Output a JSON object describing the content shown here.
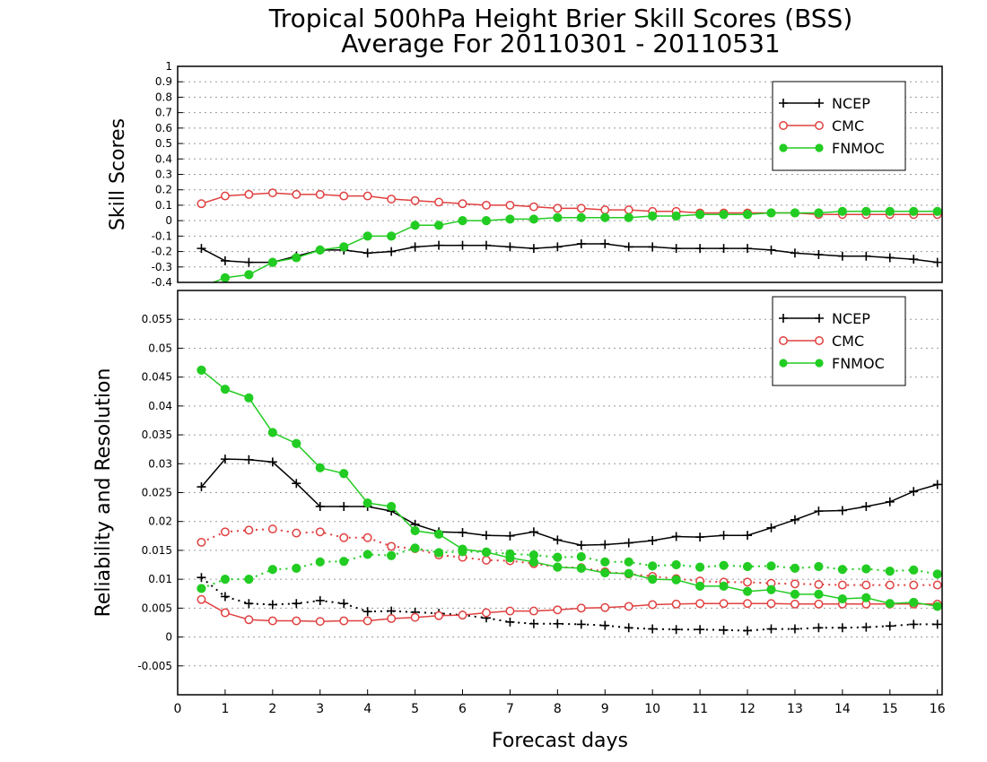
{
  "title": {
    "line1": "Tropical 500hPa Height Brier Skill Scores (BSS)",
    "line2": "Average For 20110301 - 20110531"
  },
  "colors": {
    "NCEP": "#000000",
    "CMC": "#e04040",
    "FNMOC": "#22cc22"
  },
  "chart_data": [
    {
      "type": "line",
      "ylabel": "Skill Scores",
      "xlabel": "",
      "xlim": [
        0,
        16.1
      ],
      "ylim": [
        -0.4,
        1
      ],
      "yticks": [
        -0.4,
        -0.3,
        -0.2,
        -0.1,
        0,
        0.1,
        0.2,
        0.3,
        0.4,
        0.5,
        0.6,
        0.7,
        0.8,
        0.9,
        1
      ],
      "ytick_labels": [
        "-0.4",
        "-0.3",
        "-0.2",
        "-0.1",
        "0",
        "0.1",
        "0.2",
        "0.3",
        "0.4",
        "0.5",
        "0.6",
        "0.7",
        "0.8",
        "0.9",
        "1"
      ],
      "grid": true,
      "legend": "top-right",
      "x": [
        0.5,
        1,
        1.5,
        2,
        2.5,
        3,
        3.5,
        4,
        4.5,
        5,
        5.5,
        6,
        6.5,
        7,
        7.5,
        8,
        8.5,
        9,
        9.5,
        10,
        10.5,
        11,
        11.5,
        12,
        12.5,
        13,
        13.5,
        14,
        14.5,
        15,
        15.5,
        16
      ],
      "series": [
        {
          "name": "NCEP",
          "marker": "plus",
          "line": "solid",
          "values": [
            -0.18,
            -0.26,
            -0.27,
            -0.27,
            -0.23,
            -0.19,
            -0.19,
            -0.21,
            -0.2,
            -0.17,
            -0.16,
            -0.16,
            -0.16,
            -0.17,
            -0.18,
            -0.17,
            -0.15,
            -0.15,
            -0.17,
            -0.17,
            -0.18,
            -0.18,
            -0.18,
            -0.18,
            -0.19,
            -0.21,
            -0.22,
            -0.23,
            -0.23,
            -0.24,
            -0.25,
            -0.27
          ]
        },
        {
          "name": "CMC",
          "marker": "open-circle",
          "line": "solid",
          "values": [
            0.11,
            0.16,
            0.17,
            0.18,
            0.17,
            0.17,
            0.16,
            0.16,
            0.14,
            0.13,
            0.12,
            0.11,
            0.1,
            0.1,
            0.09,
            0.08,
            0.08,
            0.07,
            0.07,
            0.06,
            0.06,
            0.05,
            0.05,
            0.05,
            0.05,
            0.05,
            0.04,
            0.04,
            0.04,
            0.04,
            0.04,
            0.04
          ]
        },
        {
          "name": "FNMOC",
          "marker": "filled-circle",
          "line": "solid",
          "values": [
            -0.43,
            -0.37,
            -0.35,
            -0.27,
            -0.24,
            -0.19,
            -0.17,
            -0.1,
            -0.1,
            -0.03,
            -0.03,
            0.0,
            0.0,
            0.01,
            0.01,
            0.02,
            0.02,
            0.02,
            0.02,
            0.03,
            0.03,
            0.04,
            0.04,
            0.04,
            0.05,
            0.05,
            0.05,
            0.06,
            0.06,
            0.06,
            0.06,
            0.06
          ]
        }
      ]
    },
    {
      "type": "line",
      "ylabel": "Reliability and Resolution",
      "xlabel": "Forecast days",
      "xlim": [
        0,
        16.1
      ],
      "ylim": [
        -0.01,
        0.06
      ],
      "yticks": [
        -0.005,
        0,
        0.005,
        0.01,
        0.015,
        0.02,
        0.025,
        0.03,
        0.035,
        0.04,
        0.045,
        0.05,
        0.055
      ],
      "ytick_labels": [
        "-0.005",
        "0",
        "0.005",
        "0.01",
        "0.015",
        "0.02",
        "0.025",
        "0.03",
        "0.035",
        "0.04",
        "0.045",
        "0.05",
        "0.055"
      ],
      "xticks": [
        0,
        1,
        2,
        3,
        4,
        5,
        6,
        7,
        8,
        9,
        10,
        11,
        12,
        13,
        14,
        15,
        16
      ],
      "xtick_labels": [
        "0",
        "1",
        "2",
        "3",
        "4",
        "5",
        "6",
        "7",
        "8",
        "9",
        "10",
        "11",
        "12",
        "13",
        "14",
        "15",
        "16"
      ],
      "grid": true,
      "legend": "top-right",
      "x": [
        0.5,
        1,
        1.5,
        2,
        2.5,
        3,
        3.5,
        4,
        4.5,
        5,
        5.5,
        6,
        6.5,
        7,
        7.5,
        8,
        8.5,
        9,
        9.5,
        10,
        10.5,
        11,
        11.5,
        12,
        12.5,
        13,
        13.5,
        14,
        14.5,
        15,
        15.5,
        16
      ],
      "series": [
        {
          "name": "NCEP",
          "marker": "plus",
          "line": "solid",
          "values": [
            0.026,
            0.0308,
            0.0307,
            0.0303,
            0.0266,
            0.0226,
            0.0226,
            0.0226,
            0.0218,
            0.0195,
            0.0182,
            0.0181,
            0.0176,
            0.0175,
            0.0182,
            0.0168,
            0.0159,
            0.016,
            0.0163,
            0.0167,
            0.0174,
            0.0173,
            0.0176,
            0.0176,
            0.0189,
            0.0203,
            0.0218,
            0.0219,
            0.0226,
            0.0234,
            0.0252,
            0.0264
          ]
        },
        {
          "name": "NCEP",
          "marker": "plus",
          "line": "dotted",
          "values": [
            0.0103,
            0.007,
            0.0058,
            0.0056,
            0.0058,
            0.0063,
            0.0058,
            0.0044,
            0.0045,
            0.0043,
            0.0041,
            0.0038,
            0.0033,
            0.0026,
            0.0023,
            0.0023,
            0.0022,
            0.002,
            0.0016,
            0.0014,
            0.0013,
            0.0013,
            0.0012,
            0.0011,
            0.0014,
            0.0014,
            0.0016,
            0.0016,
            0.0017,
            0.0019,
            0.0022,
            0.0022
          ]
        },
        {
          "name": "CMC",
          "marker": "open-circle",
          "line": "solid",
          "values": [
            0.0065,
            0.0042,
            0.003,
            0.0028,
            0.0028,
            0.0027,
            0.0028,
            0.0028,
            0.0032,
            0.0034,
            0.0037,
            0.0038,
            0.0042,
            0.0045,
            0.0045,
            0.0047,
            0.005,
            0.0051,
            0.0053,
            0.0056,
            0.0057,
            0.0058,
            0.0058,
            0.0058,
            0.0058,
            0.0057,
            0.0057,
            0.0057,
            0.0057,
            0.0057,
            0.0057,
            0.0057
          ]
        },
        {
          "name": "CMC",
          "marker": "open-circle",
          "line": "dotted",
          "values": [
            0.0164,
            0.0182,
            0.0185,
            0.0187,
            0.018,
            0.0182,
            0.0172,
            0.0172,
            0.0157,
            0.0153,
            0.0142,
            0.0138,
            0.0133,
            0.0132,
            0.0127,
            0.0121,
            0.012,
            0.0113,
            0.0109,
            0.0105,
            0.0101,
            0.0097,
            0.0095,
            0.0095,
            0.0093,
            0.0092,
            0.0091,
            0.009,
            0.009,
            0.009,
            0.009,
            0.009
          ]
        },
        {
          "name": "FNMOC",
          "marker": "filled-circle",
          "line": "solid",
          "values": [
            0.0462,
            0.0429,
            0.0414,
            0.0354,
            0.0335,
            0.0293,
            0.0283,
            0.0232,
            0.0226,
            0.0184,
            0.0178,
            0.0152,
            0.0147,
            0.0137,
            0.013,
            0.0121,
            0.0119,
            0.0111,
            0.011,
            0.01,
            0.0099,
            0.0088,
            0.0088,
            0.0079,
            0.0082,
            0.0074,
            0.0074,
            0.0066,
            0.0068,
            0.0058,
            0.006,
            0.0053
          ]
        },
        {
          "name": "FNMOC",
          "marker": "filled-circle",
          "line": "dotted",
          "values": [
            0.0084,
            0.01,
            0.01,
            0.0117,
            0.0119,
            0.013,
            0.0131,
            0.0143,
            0.0141,
            0.0154,
            0.0146,
            0.0148,
            0.0147,
            0.0144,
            0.0142,
            0.0138,
            0.0139,
            0.013,
            0.013,
            0.0123,
            0.0125,
            0.0121,
            0.0124,
            0.0122,
            0.0123,
            0.0119,
            0.0122,
            0.0117,
            0.0118,
            0.0114,
            0.0116,
            0.0109
          ]
        }
      ]
    }
  ]
}
